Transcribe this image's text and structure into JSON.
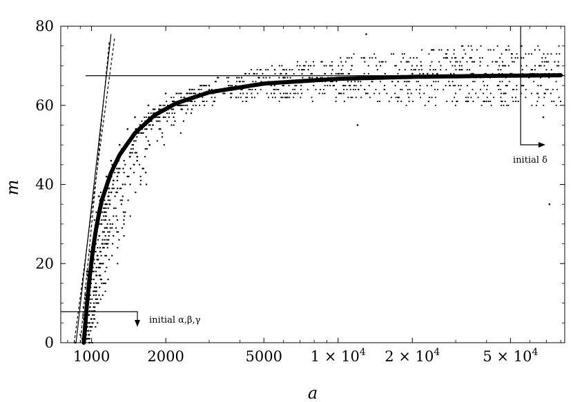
{
  "chart_data": {
    "type": "scatter",
    "xlabel": "a",
    "ylabel": "m",
    "x_scale": "log",
    "xlim": [
      750,
      83000
    ],
    "ylim": [
      0,
      80
    ],
    "x_ticks": [
      {
        "value": 1000,
        "label": "1000"
      },
      {
        "value": 2000,
        "label": "2000"
      },
      {
        "value": 5000,
        "label": "5000"
      },
      {
        "value": 10000,
        "label": "1 × 10",
        "exp": "4"
      },
      {
        "value": 20000,
        "label": "2 × 10",
        "exp": "4"
      },
      {
        "value": 50000,
        "label": "5 × 10",
        "exp": "4"
      }
    ],
    "y_ticks": [
      0,
      20,
      40,
      60,
      80
    ],
    "grid": false,
    "series": [
      {
        "kind": "scatter",
        "description_points": [
          [
            860,
            0
          ],
          [
            900,
            2
          ],
          [
            930,
            6
          ],
          [
            960,
            12
          ],
          [
            990,
            18
          ],
          [
            1020,
            24
          ],
          [
            1060,
            30
          ],
          [
            1100,
            36
          ],
          [
            1150,
            42
          ],
          [
            1200,
            46
          ],
          [
            1300,
            50
          ],
          [
            1400,
            54
          ],
          [
            1500,
            57
          ],
          [
            1700,
            60
          ],
          [
            2000,
            63
          ],
          [
            2500,
            64
          ],
          [
            3000,
            65
          ],
          [
            4000,
            66
          ],
          [
            6000,
            67
          ],
          [
            10000,
            68
          ],
          [
            20000,
            68
          ],
          [
            50000,
            68
          ],
          [
            1150,
            25
          ],
          [
            1720,
            50
          ],
          [
            12000,
            55
          ],
          [
            13000,
            78
          ],
          [
            72000,
            35
          ],
          [
            68000,
            57
          ]
        ]
      },
      {
        "kind": "fit_curve",
        "x": [
          930,
          950,
          980,
          1000,
          1050,
          1100,
          1200,
          1300,
          1500,
          1800,
          2200,
          3000,
          5000,
          10000,
          20000,
          50000,
          80000
        ],
        "y": [
          0,
          7.5,
          16,
          21,
          30,
          36,
          43,
          47.5,
          53,
          57.5,
          60.5,
          63.3,
          65.5,
          66.7,
          67.2,
          67.5,
          67.6
        ]
      },
      {
        "kind": "line_solid",
        "x": [
          865,
          1200
        ],
        "y": [
          0,
          78
        ]
      },
      {
        "kind": "line_dashed",
        "x": [
          850,
          1240
        ],
        "y": [
          0,
          77
        ]
      },
      {
        "kind": "line_dashed",
        "x": [
          900,
          1180
        ],
        "y": [
          0,
          76
        ]
      },
      {
        "kind": "hline",
        "y": 67.5,
        "x": [
          750,
          83000
        ]
      },
      {
        "kind": "vline",
        "x": 55000,
        "y": [
          57,
          80
        ]
      }
    ],
    "annotations": [
      {
        "text": "initial δ",
        "x": 55000,
        "y": 50
      },
      {
        "text": "initial α,β,γ",
        "x": 1520,
        "y": 5
      }
    ]
  }
}
